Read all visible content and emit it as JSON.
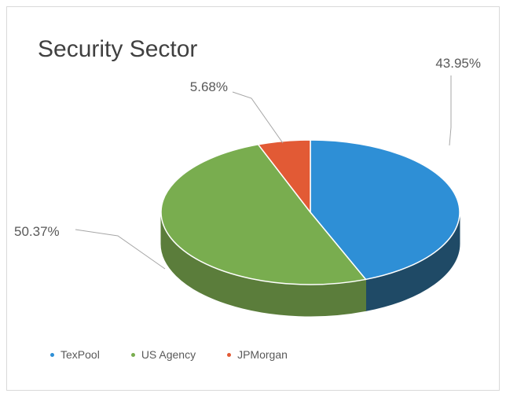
{
  "chart_data": {
    "type": "pie",
    "title": "Security Sector",
    "slices": [
      {
        "label": "TexPool",
        "value": 43.95,
        "value_label": "43.95%",
        "color": "#2e8fd6",
        "side_color": "#1f4a66"
      },
      {
        "label": "US Agency",
        "value": 50.37,
        "value_label": "50.37%",
        "color": "#79ad4f",
        "side_color": "#5b7d3b"
      },
      {
        "label": "JPMorgan",
        "value": 5.68,
        "value_label": "5.68%",
        "color": "#e25a35",
        "side_color": "#a8442a"
      }
    ],
    "legend_position": "bottom-left",
    "style": "3d"
  }
}
